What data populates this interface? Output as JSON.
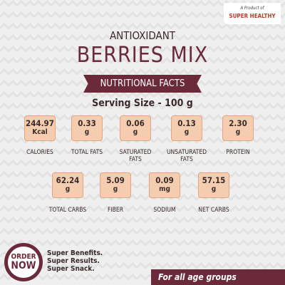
{
  "brand": {
    "intro": "A Product of",
    "name": "SUPER HEALTHY"
  },
  "title": {
    "top": "ANTIOXIDANT",
    "main": "BERRIES MIX"
  },
  "banner": "NUTRITIONAL FACTS",
  "serving": "Serving Size - 100 g",
  "nutrients": [
    {
      "value": "244.97",
      "unit": "Kcal",
      "label": "CALORIES"
    },
    {
      "value": "0.33",
      "unit": "g",
      "label": "TOTAL FATS"
    },
    {
      "value": "0.06",
      "unit": "g",
      "label": "SATURATED FATS"
    },
    {
      "value": "0.13",
      "unit": "g",
      "label": "UNSATURATED FATS"
    },
    {
      "value": "2.30",
      "unit": "g",
      "label": "PROTEIN"
    },
    {
      "value": "62.24",
      "unit": "g",
      "label": "TOTAL CARBS"
    },
    {
      "value": "5.09",
      "unit": "g",
      "label": "FIBER"
    },
    {
      "value": "0.09",
      "unit": "mg",
      "label": "SODIUM"
    },
    {
      "value": "57.15",
      "unit": "g",
      "label": "NET CARBS"
    }
  ],
  "order": {
    "line1": "ORDER",
    "line2": "NOW"
  },
  "taglines": [
    "Super Benefits.",
    "Super Results.",
    "Super Snack."
  ],
  "footer": "For all age groups"
}
